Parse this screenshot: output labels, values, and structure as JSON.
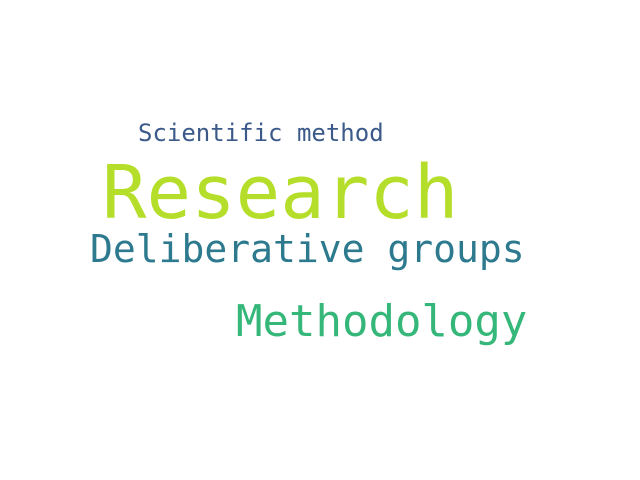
{
  "word_cloud": {
    "words": [
      {
        "text": "Scientific method",
        "color": "#3b5a8a"
      },
      {
        "text": "Research",
        "color": "#b5de2b"
      },
      {
        "text": "Deliberative groups",
        "color": "#2d7a8e"
      },
      {
        "text": "Methodology",
        "color": "#35b779"
      }
    ]
  }
}
